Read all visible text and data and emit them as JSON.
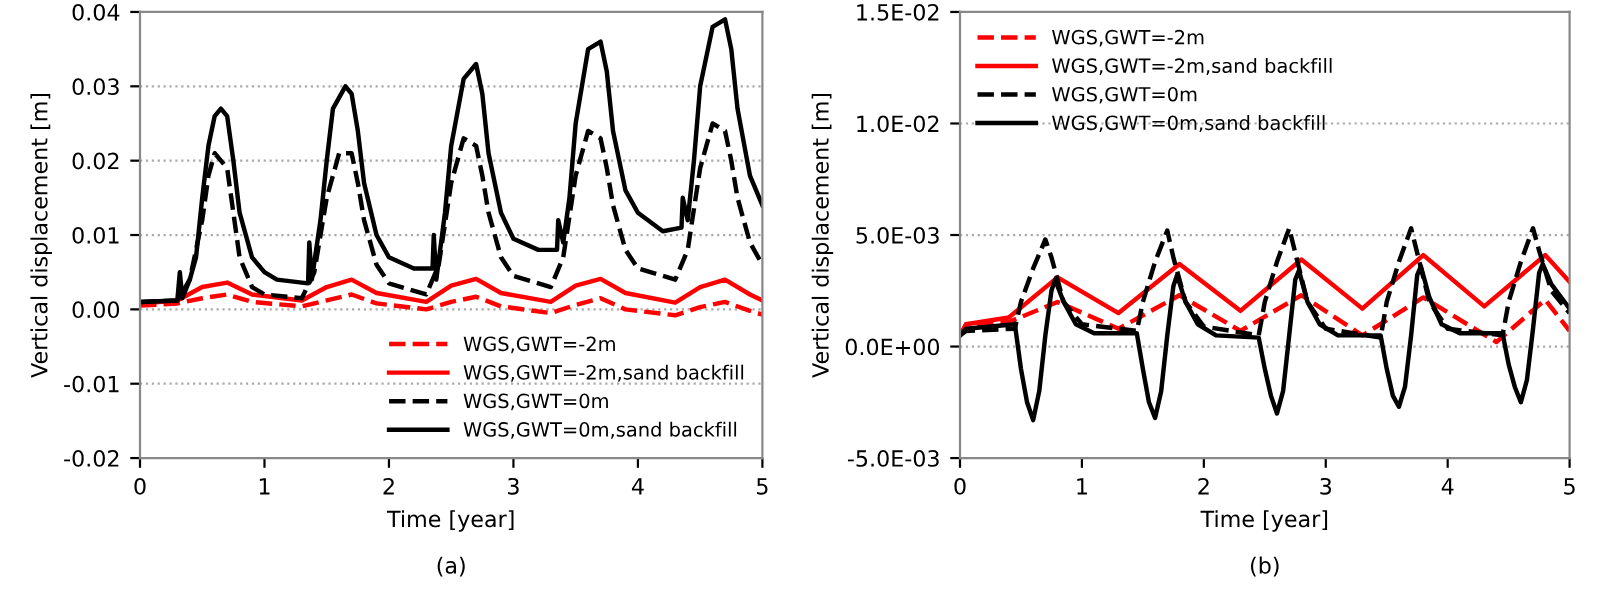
{
  "chart_data": [
    {
      "type": "line",
      "xlabel": "Time [year]",
      "ylabel": "Vertical displacement [m]",
      "annotations": [
        "(a)"
      ],
      "xlim": [
        0,
        5
      ],
      "xticks": [
        0,
        1,
        2,
        3,
        4,
        5
      ],
      "ylim": [
        -0.02,
        0.04
      ],
      "yticks": [
        {
          "value": -0.02,
          "label": "-0.02"
        },
        {
          "value": -0.01,
          "label": "-0.01"
        },
        {
          "value": 0,
          "label": "0.00"
        },
        {
          "value": 0.01,
          "label": "0.01"
        },
        {
          "value": 0.02,
          "label": "0.02"
        },
        {
          "value": 0.03,
          "label": "0.03"
        },
        {
          "value": 0.04,
          "label": "0.04"
        }
      ],
      "grid": "y",
      "legend": "bottom right",
      "series": [
        {
          "name": "WGS,GWT=-2m",
          "color": "#ff0000",
          "line_style": "dashed",
          "x": [
            0,
            0.3,
            0.5,
            0.7,
            0.9,
            1.3,
            1.5,
            1.7,
            1.9,
            2.3,
            2.5,
            2.7,
            2.9,
            3.3,
            3.5,
            3.7,
            3.9,
            4.3,
            4.5,
            4.7,
            4.9,
            5.0
          ],
          "values": [
            0.0005,
            0.0008,
            0.0015,
            0.002,
            0.001,
            0.0004,
            0.0012,
            0.002,
            0.0008,
            0.0,
            0.001,
            0.0017,
            0.0004,
            -0.0005,
            0.0006,
            0.0015,
            0.0,
            -0.0008,
            0.0003,
            0.001,
            -0.0002,
            -0.0007
          ]
        },
        {
          "name": "WGS,GWT=-2m,sand backfill",
          "color": "#ff0000",
          "line_style": "solid",
          "x": [
            0,
            0.3,
            0.5,
            0.7,
            0.9,
            1.3,
            1.5,
            1.7,
            1.9,
            2.3,
            2.5,
            2.7,
            2.9,
            3.3,
            3.5,
            3.7,
            3.9,
            4.3,
            4.5,
            4.7,
            4.9,
            5.0
          ],
          "values": [
            0.0008,
            0.0012,
            0.003,
            0.0036,
            0.002,
            0.0012,
            0.003,
            0.004,
            0.0022,
            0.001,
            0.0032,
            0.0041,
            0.0022,
            0.001,
            0.0032,
            0.0041,
            0.0022,
            0.0009,
            0.003,
            0.004,
            0.002,
            0.0012
          ]
        },
        {
          "name": "WGS,GWT=0m",
          "color": "#000000",
          "line_style": "dashed",
          "x": [
            0,
            0.3,
            0.4,
            0.5,
            0.55,
            0.6,
            0.65,
            0.7,
            0.75,
            0.8,
            0.9,
            1.0,
            1.3,
            1.4,
            1.5,
            1.6,
            1.7,
            1.75,
            1.8,
            1.9,
            2.0,
            2.3,
            2.4,
            2.5,
            2.6,
            2.7,
            2.75,
            2.8,
            2.9,
            3.0,
            3.3,
            3.4,
            3.5,
            3.6,
            3.7,
            3.75,
            3.8,
            3.9,
            4.0,
            4.3,
            4.4,
            4.5,
            4.6,
            4.7,
            4.75,
            4.8,
            4.9,
            5.0
          ],
          "values": [
            0.001,
            0.0012,
            0.004,
            0.012,
            0.018,
            0.021,
            0.02,
            0.019,
            0.013,
            0.007,
            0.003,
            0.002,
            0.0015,
            0.005,
            0.015,
            0.021,
            0.021,
            0.017,
            0.012,
            0.006,
            0.0035,
            0.002,
            0.006,
            0.017,
            0.023,
            0.022,
            0.018,
            0.013,
            0.007,
            0.0045,
            0.003,
            0.007,
            0.018,
            0.024,
            0.023,
            0.019,
            0.014,
            0.008,
            0.0055,
            0.004,
            0.008,
            0.019,
            0.025,
            0.024,
            0.02,
            0.015,
            0.009,
            0.006
          ]
        },
        {
          "name": "WGS,GWT=0m,sand backfill",
          "color": "#000000",
          "line_style": "solid",
          "x": [
            0,
            0.3,
            0.32,
            0.34,
            0.4,
            0.45,
            0.5,
            0.55,
            0.6,
            0.65,
            0.7,
            0.75,
            0.8,
            0.9,
            1.0,
            1.1,
            1.35,
            1.36,
            1.38,
            1.45,
            1.5,
            1.55,
            1.65,
            1.7,
            1.75,
            1.8,
            1.9,
            2.0,
            2.2,
            2.35,
            2.36,
            2.38,
            2.45,
            2.5,
            2.6,
            2.7,
            2.75,
            2.8,
            2.9,
            3.0,
            3.2,
            3.35,
            3.36,
            3.4,
            3.45,
            3.5,
            3.6,
            3.7,
            3.75,
            3.8,
            3.9,
            4.0,
            4.2,
            4.35,
            4.36,
            4.4,
            4.45,
            4.5,
            4.6,
            4.7,
            4.75,
            4.8,
            4.9,
            5.0
          ],
          "values": [
            0.001,
            0.0012,
            0.005,
            0.0015,
            0.004,
            0.007,
            0.015,
            0.022,
            0.026,
            0.027,
            0.026,
            0.02,
            0.013,
            0.007,
            0.005,
            0.004,
            0.0035,
            0.009,
            0.004,
            0.012,
            0.02,
            0.027,
            0.03,
            0.029,
            0.024,
            0.017,
            0.01,
            0.007,
            0.0055,
            0.0055,
            0.01,
            0.004,
            0.013,
            0.022,
            0.031,
            0.033,
            0.029,
            0.021,
            0.013,
            0.0095,
            0.008,
            0.008,
            0.012,
            0.009,
            0.015,
            0.025,
            0.035,
            0.036,
            0.032,
            0.024,
            0.016,
            0.013,
            0.0105,
            0.011,
            0.015,
            0.012,
            0.02,
            0.03,
            0.038,
            0.039,
            0.035,
            0.027,
            0.018,
            0.014
          ]
        }
      ]
    },
    {
      "type": "line",
      "xlabel": "Time [year]",
      "ylabel": "Vertical displacement [m]",
      "annotations": [
        "(b)"
      ],
      "xlim": [
        0,
        5
      ],
      "xticks": [
        0,
        1,
        2,
        3,
        4,
        5
      ],
      "ylim": [
        -0.005,
        0.015
      ],
      "yticks": [
        {
          "value": -0.005,
          "label": "-5.0E-03"
        },
        {
          "value": 0,
          "label": "0.0E+00"
        },
        {
          "value": 0.005,
          "label": "5.0E-03"
        },
        {
          "value": 0.01,
          "label": "1.0E-02"
        },
        {
          "value": 0.015,
          "label": "1.5E-02"
        }
      ],
      "grid": "y",
      "legend": "top left",
      "series": [
        {
          "name": "WGS,GWT=-2m",
          "color": "#ff0000",
          "line_style": "dashed",
          "x": [
            0,
            0.05,
            0.4,
            0.8,
            1.3,
            1.8,
            2.3,
            2.8,
            3.3,
            3.8,
            4.4,
            4.8,
            5.0
          ],
          "values": [
            0.0005,
            0.001,
            0.0011,
            0.002,
            0.0008,
            0.0023,
            0.0007,
            0.0023,
            0.0005,
            0.0022,
            0.0002,
            0.0021,
            0.0007
          ]
        },
        {
          "name": "WGS,GWT=-2m,sand backfill",
          "color": "#ff0000",
          "line_style": "solid",
          "x": [
            0,
            0.05,
            0.4,
            0.8,
            1.3,
            1.8,
            2.3,
            2.8,
            3.3,
            3.8,
            4.3,
            4.8,
            5.0
          ],
          "values": [
            0.0005,
            0.001,
            0.0013,
            0.0031,
            0.0015,
            0.0037,
            0.0016,
            0.0039,
            0.0017,
            0.0041,
            0.0018,
            0.0041,
            0.0029
          ]
        },
        {
          "name": "WGS,GWT=0m",
          "color": "#000000",
          "line_style": "dashed",
          "x": [
            0,
            0.05,
            0.45,
            0.5,
            0.6,
            0.7,
            0.75,
            0.85,
            1.0,
            1.45,
            1.5,
            1.6,
            1.7,
            1.75,
            1.85,
            2.0,
            2.45,
            2.5,
            2.6,
            2.7,
            2.75,
            2.85,
            3.0,
            3.45,
            3.5,
            3.6,
            3.7,
            3.75,
            3.85,
            4.0,
            4.45,
            4.5,
            4.6,
            4.7,
            4.75,
            4.85,
            5.0
          ],
          "values": [
            0.0005,
            0.0007,
            0.0008,
            0.002,
            0.0035,
            0.0048,
            0.004,
            0.002,
            0.001,
            0.0007,
            0.002,
            0.0038,
            0.0052,
            0.004,
            0.002,
            0.0009,
            0.0005,
            0.002,
            0.0038,
            0.0053,
            0.0042,
            0.002,
            0.0008,
            0.0004,
            0.002,
            0.0038,
            0.0053,
            0.0042,
            0.002,
            0.0008,
            0.0005,
            0.002,
            0.0038,
            0.0053,
            0.0043,
            0.0025,
            0.0015
          ]
        },
        {
          "name": "WGS,GWT=0m,sand backfill",
          "color": "#000000",
          "line_style": "solid",
          "x": [
            0,
            0.05,
            0.45,
            0.5,
            0.55,
            0.6,
            0.65,
            0.7,
            0.75,
            0.78,
            0.85,
            0.95,
            1.1,
            1.45,
            1.5,
            1.55,
            1.6,
            1.65,
            1.7,
            1.75,
            1.78,
            1.85,
            1.95,
            2.1,
            2.45,
            2.5,
            2.55,
            2.6,
            2.65,
            2.7,
            2.75,
            2.78,
            2.85,
            2.95,
            3.1,
            3.45,
            3.5,
            3.55,
            3.6,
            3.65,
            3.7,
            3.75,
            3.78,
            3.85,
            3.95,
            4.1,
            4.45,
            4.5,
            4.55,
            4.6,
            4.65,
            4.7,
            4.75,
            4.78,
            4.85,
            5.0
          ],
          "values": [
            0.0005,
            0.0008,
            0.001,
            -0.001,
            -0.0025,
            -0.0033,
            -0.002,
            0.0005,
            0.0025,
            0.003,
            0.002,
            0.001,
            0.0006,
            0.0006,
            -0.001,
            -0.0025,
            -0.0032,
            -0.002,
            0.0005,
            0.0027,
            0.0032,
            0.002,
            0.001,
            0.0005,
            0.0004,
            -0.001,
            -0.0022,
            -0.003,
            -0.002,
            0.0005,
            0.003,
            0.0034,
            0.002,
            0.001,
            0.0005,
            0.0005,
            -0.001,
            -0.0022,
            -0.0027,
            -0.0018,
            0.0005,
            0.0032,
            0.0036,
            0.0022,
            0.001,
            0.0006,
            0.0006,
            -0.0008,
            -0.0018,
            -0.0025,
            -0.0015,
            0.0008,
            0.0033,
            0.0037,
            0.0028,
            0.0017
          ]
        }
      ]
    }
  ]
}
